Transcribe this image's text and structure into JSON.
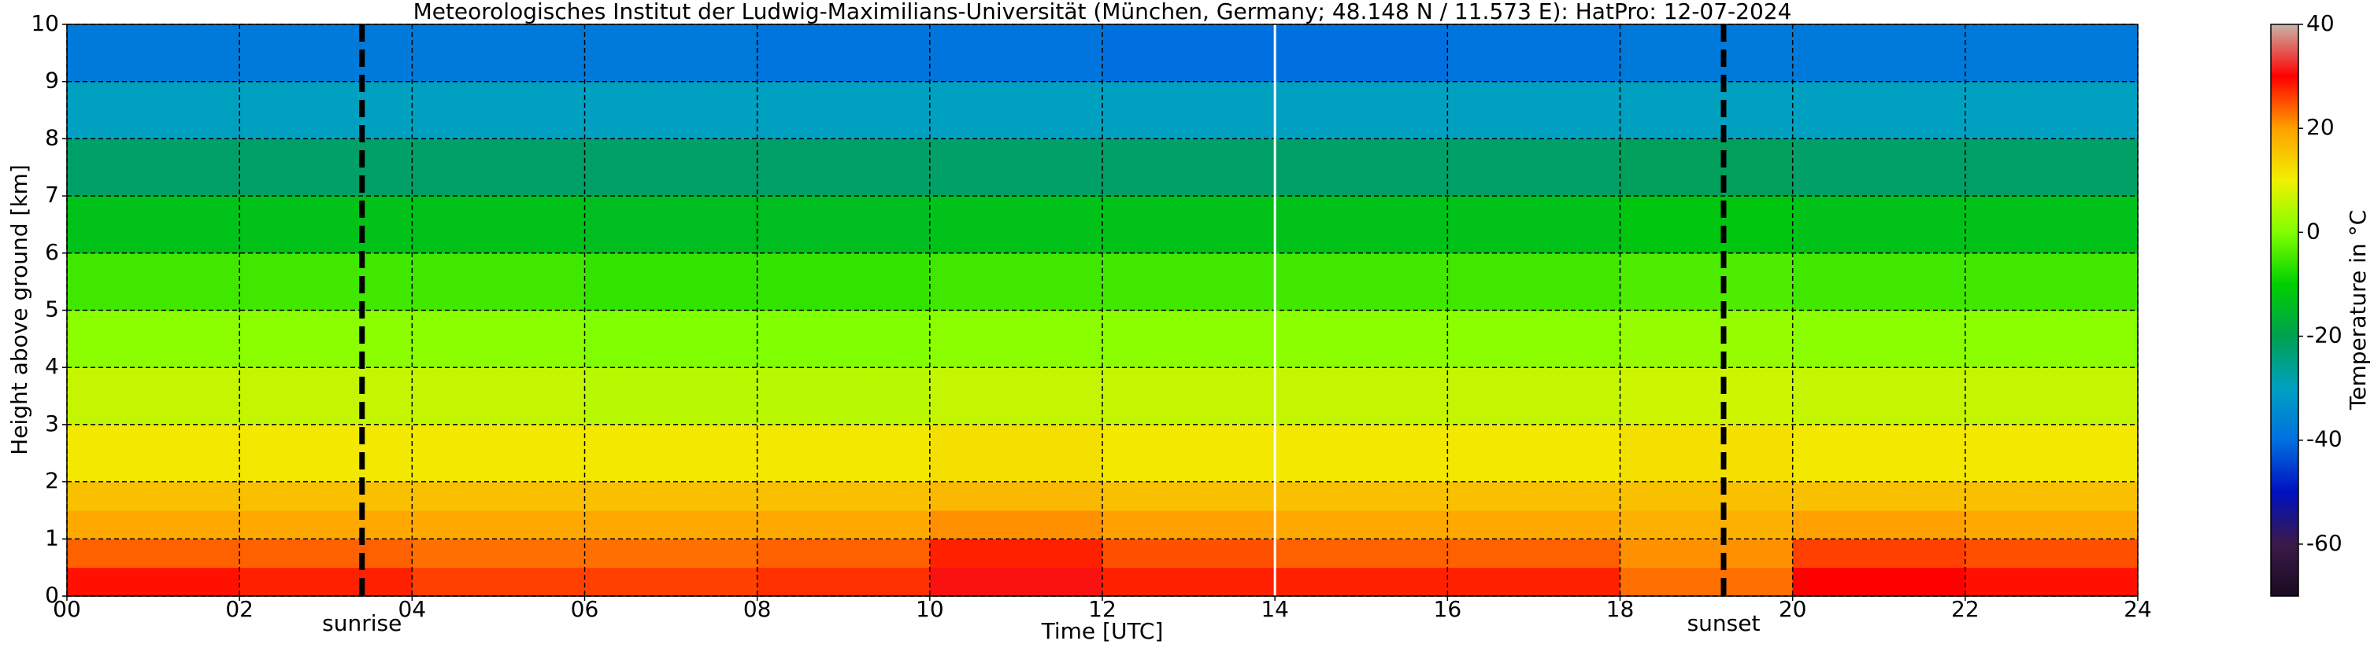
{
  "chart_data": {
    "type": "heatmap",
    "title": "Meteorologisches Institut der Ludwig-Maximilians-Universität (München, Germany; 48.148 N / 11.573 E):    HatPro: 12-07-2024",
    "x_label": "Time [UTC]",
    "y_label": "Height above ground [km]",
    "colorbar_label": "Temperature in °C",
    "xlim": [
      0,
      24
    ],
    "ylim": [
      0,
      10
    ],
    "xticks": [
      {
        "value": 0,
        "label": "00"
      },
      {
        "value": 2,
        "label": "02"
      },
      {
        "value": 4,
        "label": "04"
      },
      {
        "value": 6,
        "label": "06"
      },
      {
        "value": 8,
        "label": "08"
      },
      {
        "value": 10,
        "label": "10"
      },
      {
        "value": 12,
        "label": "12"
      },
      {
        "value": 14,
        "label": "14"
      },
      {
        "value": 16,
        "label": "16"
      },
      {
        "value": 18,
        "label": "18"
      },
      {
        "value": 20,
        "label": "20"
      },
      {
        "value": 22,
        "label": "22"
      },
      {
        "value": 24,
        "label": "24"
      }
    ],
    "yticks": [
      0,
      1,
      2,
      3,
      4,
      5,
      6,
      7,
      8,
      9,
      10
    ],
    "clim": [
      -70,
      40
    ],
    "cticks": [
      -60,
      -40,
      -20,
      0,
      20,
      40
    ],
    "colormap": [
      "#1a0a20",
      "#3b1a4a",
      "#0010c0",
      "#0070e0",
      "#00a0c0",
      "#00a050",
      "#00d000",
      "#80ff00",
      "#f0f000",
      "#ffa000",
      "#ff0000",
      "#c8b4a8"
    ],
    "grid": true,
    "x_bins": [
      0,
      2,
      4,
      6,
      8,
      10,
      12,
      14,
      16,
      18,
      20,
      22,
      24
    ],
    "y_bins": [
      0,
      0.5,
      1,
      1.5,
      2,
      3,
      4,
      5,
      6,
      7,
      8,
      9,
      10
    ],
    "values": [
      [
        29,
        28,
        26,
        26,
        27,
        31,
        28,
        28,
        28,
        23,
        30,
        29
      ],
      [
        24,
        24,
        23,
        23,
        24,
        28,
        25,
        24,
        24,
        21,
        26,
        25
      ],
      [
        19,
        19,
        19,
        19,
        19,
        21,
        20,
        19,
        19,
        18,
        20,
        19
      ],
      [
        16,
        16,
        16,
        16,
        16,
        17,
        16,
        16,
        16,
        16,
        16,
        16
      ],
      [
        11,
        11,
        11,
        11,
        11,
        12,
        11,
        11,
        11,
        12,
        11,
        11
      ],
      [
        6,
        6,
        6,
        5,
        5,
        6,
        6,
        6,
        6,
        7,
        6,
        6
      ],
      [
        1,
        1,
        1,
        0,
        0,
        1,
        1,
        1,
        1,
        2,
        1,
        1
      ],
      [
        -5,
        -5,
        -5,
        -6,
        -6,
        -5,
        -5,
        -5,
        -5,
        -4,
        -5,
        -5
      ],
      [
        -13,
        -13,
        -13,
        -14,
        -14,
        -13,
        -13,
        -13,
        -13,
        -12,
        -13,
        -13
      ],
      [
        -22,
        -22,
        -22,
        -22,
        -22,
        -22,
        -22,
        -22,
        -22,
        -21,
        -22,
        -22
      ],
      [
        -30,
        -30,
        -30,
        -30,
        -30,
        -30,
        -30,
        -30,
        -30,
        -30,
        -30,
        -30
      ],
      [
        -38,
        -38,
        -38,
        -38,
        -39,
        -39,
        -40,
        -40,
        -39,
        -38,
        -38,
        -38
      ]
    ],
    "marker_x": 14,
    "annotations": [
      {
        "text": "sunrise",
        "x": 3.42
      },
      {
        "text": "sunset",
        "x": 19.2
      }
    ]
  }
}
